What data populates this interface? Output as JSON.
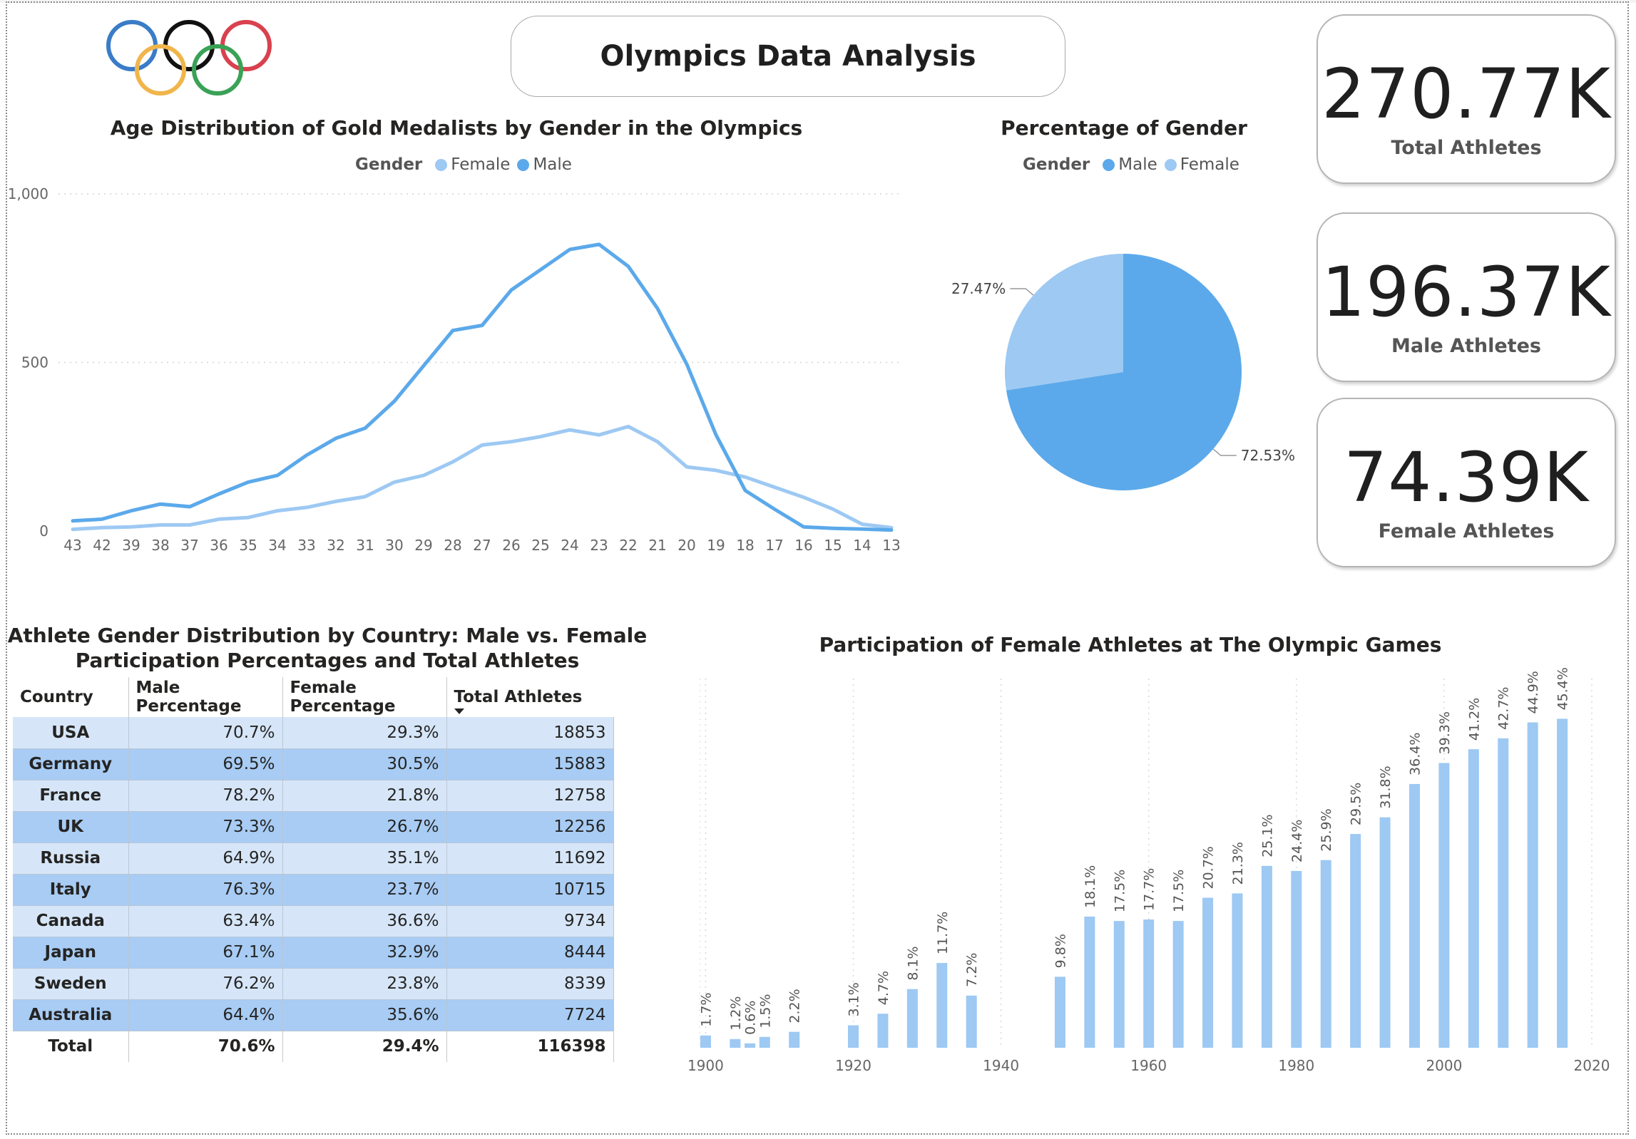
{
  "dashboard": {
    "title": "Olympics Data Analysis",
    "logo": "olympic-rings",
    "colors": {
      "male": "#5ba9ea",
      "female": "#9dc9f3",
      "table_odd": "#d6e6f8",
      "table_even": "#a8ccf4"
    }
  },
  "cards": [
    {
      "value": "270.77K",
      "label": "Total Athletes"
    },
    {
      "value": "196.37K",
      "label": "Male Athletes"
    },
    {
      "value": "74.39K",
      "label": "Female Athletes"
    }
  ],
  "age_chart": {
    "title": "Age Distribution of Gold Medalists by Gender in the Olympics",
    "legend_title": "Gender",
    "legend": [
      "Female",
      "Male"
    ]
  },
  "pie_chart": {
    "title": "Percentage of Gender",
    "legend_title": "Gender",
    "legend": [
      "Male",
      "Female"
    ]
  },
  "table": {
    "title_line1": "Athlete Gender Distribution by Country: Male vs. Female",
    "title_line2": "Participation Percentages and Total Athletes",
    "columns": [
      "Country",
      "Male Percentage",
      "Female Percentage",
      "Total Athletes"
    ],
    "rows": [
      [
        "USA",
        "70.7%",
        "29.3%",
        "18853"
      ],
      [
        "Germany",
        "69.5%",
        "30.5%",
        "15883"
      ],
      [
        "France",
        "78.2%",
        "21.8%",
        "12758"
      ],
      [
        "UK",
        "73.3%",
        "26.7%",
        "12256"
      ],
      [
        "Russia",
        "64.9%",
        "35.1%",
        "11692"
      ],
      [
        "Italy",
        "76.3%",
        "23.7%",
        "10715"
      ],
      [
        "Canada",
        "63.4%",
        "36.6%",
        "9734"
      ],
      [
        "Japan",
        "67.1%",
        "32.9%",
        "8444"
      ],
      [
        "Sweden",
        "76.2%",
        "23.8%",
        "8339"
      ],
      [
        "Australia",
        "64.4%",
        "35.6%",
        "7724"
      ]
    ],
    "total": [
      "Total",
      "70.6%",
      "29.4%",
      "116398"
    ]
  },
  "bar_chart": {
    "title": "Participation of Female Athletes at The Olympic Games"
  },
  "chart_data": [
    {
      "type": "line",
      "title": "Age Distribution of Gold Medalists by Gender in the Olympics",
      "x": [
        43,
        42,
        39,
        38,
        37,
        36,
        35,
        34,
        33,
        32,
        31,
        30,
        29,
        28,
        27,
        26,
        25,
        24,
        23,
        22,
        21,
        20,
        19,
        18,
        17,
        16,
        15,
        14,
        13
      ],
      "yticks": [
        "0",
        "500",
        "1,000"
      ],
      "ylim": [
        0,
        1000
      ],
      "grid": true,
      "legend_position": "top",
      "series": [
        {
          "name": "Female",
          "color": "#9dc9f3",
          "values": [
            5,
            10,
            12,
            18,
            18,
            35,
            40,
            60,
            70,
            88,
            102,
            145,
            165,
            205,
            255,
            265,
            280,
            300,
            285,
            310,
            265,
            190,
            180,
            160,
            130,
            100,
            65,
            20,
            10
          ]
        },
        {
          "name": "Male",
          "color": "#5ba9ea",
          "values": [
            30,
            35,
            60,
            80,
            72,
            110,
            145,
            165,
            225,
            275,
            305,
            385,
            490,
            595,
            610,
            715,
            775,
            835,
            850,
            785,
            660,
            495,
            285,
            120,
            65,
            12,
            8,
            6,
            3
          ]
        }
      ]
    },
    {
      "type": "pie",
      "title": "Percentage of Gender",
      "slices": [
        {
          "label": "Male",
          "value": 72.53,
          "text": "72.53%",
          "color": "#5ba9ea"
        },
        {
          "label": "Female",
          "value": 27.47,
          "text": "27.47%",
          "color": "#9dc9f3"
        }
      ]
    },
    {
      "type": "bar",
      "title": "Participation of Female Athletes at The Olympic Games",
      "xlim": [
        1896,
        2020
      ],
      "xticks": [
        1900,
        1920,
        1940,
        1960,
        1980,
        2000,
        2020
      ],
      "ylim": [
        0,
        48
      ],
      "color": "#9dc9f3",
      "x": [
        1900,
        1904,
        1906,
        1908,
        1912,
        1920,
        1924,
        1928,
        1932,
        1936,
        1948,
        1952,
        1956,
        1960,
        1964,
        1968,
        1972,
        1976,
        1980,
        1984,
        1988,
        1992,
        1996,
        2000,
        2004,
        2008,
        2012,
        2016
      ],
      "values": [
        1.7,
        1.2,
        0.6,
        1.5,
        2.2,
        3.1,
        4.7,
        8.1,
        11.7,
        7.2,
        9.8,
        18.1,
        17.5,
        17.7,
        17.5,
        20.7,
        21.3,
        25.1,
        24.4,
        25.9,
        29.5,
        31.8,
        36.4,
        39.3,
        41.2,
        42.7,
        44.9,
        45.4
      ],
      "labels": [
        "1.7%",
        "1.2%",
        "0.6%",
        "1.5%",
        "2.2%",
        "3.1%",
        "4.7%",
        "8.1%",
        "11.7%",
        "7.2%",
        "9.8%",
        "18.1%",
        "17.5%",
        "17.7%",
        "17.5%",
        "20.7%",
        "21.3%",
        "25.1%",
        "24.4%",
        "25.9%",
        "29.5%",
        "31.8%",
        "36.4%",
        "39.3%",
        "41.2%",
        "42.7%",
        "44.9%",
        "45.4%"
      ]
    }
  ]
}
